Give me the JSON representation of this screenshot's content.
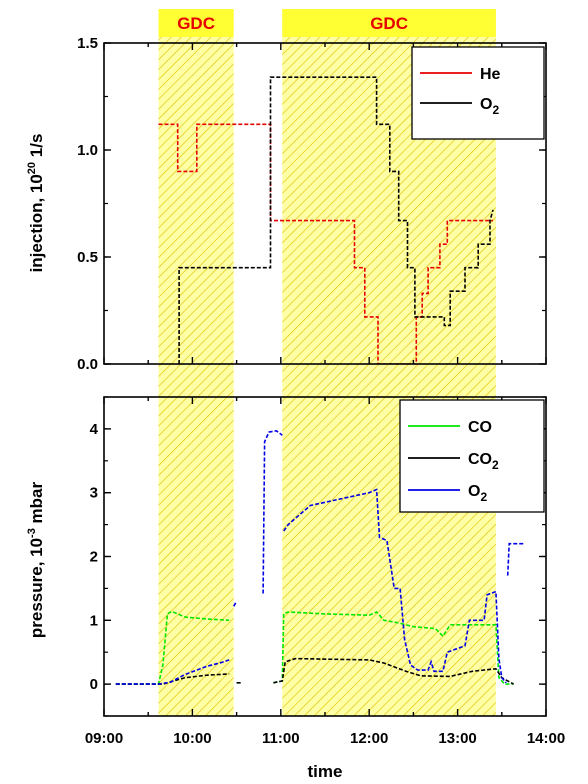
{
  "chart_data": [
    {
      "type": "line",
      "ylabel_main": "injection, 10",
      "ylabel_exp": "20",
      "ylabel_unit": " 1/s",
      "ylim": [
        0,
        1.5
      ],
      "yticks": [
        "0.0",
        "0.5",
        "1.0",
        "1.5"
      ],
      "xlim": [
        "09:00",
        "14:00"
      ],
      "grid": false,
      "legend_position": "top-right",
      "bands": [
        {
          "label": "GDC",
          "x0": "09:37",
          "x1": "10:28"
        },
        {
          "label": "GDC",
          "x0": "11:01",
          "x1": "13:26"
        }
      ],
      "series": [
        {
          "name": "He",
          "color": "#e60000",
          "points": [
            [
              "09:37",
              1.12
            ],
            [
              "09:50",
              1.12
            ],
            [
              "09:50",
              0.9
            ],
            [
              "10:03",
              0.9
            ],
            [
              "10:03",
              1.12
            ],
            [
              "10:28",
              1.12
            ],
            [
              "10:53",
              1.12
            ],
            [
              "10:53",
              0.67
            ],
            [
              "11:01",
              0.67
            ],
            [
              "11:50",
              0.67
            ],
            [
              "11:50",
              0.45
            ],
            [
              "11:57",
              0.45
            ],
            [
              "11:57",
              0.22
            ],
            [
              "12:06",
              0.22
            ],
            [
              "12:06",
              0.0
            ],
            [
              "12:32",
              0.0
            ],
            [
              "12:32",
              0.22
            ],
            [
              "12:36",
              0.22
            ],
            [
              "12:36",
              0.33
            ],
            [
              "12:40",
              0.33
            ],
            [
              "12:40",
              0.45
            ],
            [
              "12:48",
              0.45
            ],
            [
              "12:48",
              0.56
            ],
            [
              "12:53",
              0.56
            ],
            [
              "12:53",
              0.67
            ],
            [
              "13:24",
              0.67
            ]
          ]
        },
        {
          "name": "O",
          "name_sub": "2",
          "color": "#000000",
          "points": [
            [
              "09:51",
              0.0
            ],
            [
              "09:51",
              0.45
            ],
            [
              "10:28",
              0.45
            ],
            [
              "10:53",
              0.45
            ],
            [
              "10:53",
              1.34
            ],
            [
              "11:01",
              1.34
            ],
            [
              "12:05",
              1.34
            ],
            [
              "12:05",
              1.12
            ],
            [
              "12:14",
              1.12
            ],
            [
              "12:14",
              0.9
            ],
            [
              "12:20",
              0.9
            ],
            [
              "12:20",
              0.67
            ],
            [
              "12:26",
              0.67
            ],
            [
              "12:26",
              0.45
            ],
            [
              "12:31",
              0.45
            ],
            [
              "12:31",
              0.22
            ],
            [
              "12:51",
              0.22
            ],
            [
              "12:51",
              0.18
            ],
            [
              "12:55",
              0.18
            ],
            [
              "12:55",
              0.34
            ],
            [
              "13:05",
              0.34
            ],
            [
              "13:05",
              0.45
            ],
            [
              "13:14",
              0.45
            ],
            [
              "13:14",
              0.56
            ],
            [
              "13:22",
              0.56
            ],
            [
              "13:22",
              0.67
            ],
            [
              "13:24",
              0.72
            ]
          ]
        }
      ]
    },
    {
      "type": "line",
      "ylabel_main": "pressure, 10",
      "ylabel_exp": "-3",
      "ylabel_unit": " mbar",
      "ylim": [
        -0.5,
        4.5
      ],
      "yticks": [
        "0",
        "1",
        "2",
        "3",
        "4"
      ],
      "xlabel": "time",
      "xticks": [
        "09:00",
        "10:00",
        "11:00",
        "12:00",
        "13:00",
        "14:00"
      ],
      "grid": false,
      "legend_position": "top-right",
      "bands": [
        {
          "label": "GDC",
          "x0": "09:37",
          "x1": "10:28"
        },
        {
          "label": "GDC",
          "x0": "11:01",
          "x1": "13:26"
        }
      ],
      "series": [
        {
          "name": "CO",
          "color": "#00e600",
          "segments": [
            [
              [
                "09:08",
                0.0
              ],
              [
                "09:37",
                0.0
              ],
              [
                "09:40",
                0.3
              ],
              [
                "09:43",
                1.1
              ],
              [
                "09:46",
                1.14
              ],
              [
                "09:55",
                1.05
              ],
              [
                "10:10",
                1.02
              ],
              [
                "10:25",
                1.0
              ]
            ],
            [
              [
                "10:30",
                0.02
              ],
              [
                "10:33",
                0.02
              ]
            ],
            [
              [
                "10:55",
                0.02
              ],
              [
                "11:01",
                0.05
              ],
              [
                "11:02",
                1.1
              ],
              [
                "11:05",
                1.13
              ],
              [
                "11:30",
                1.1
              ],
              [
                "12:00",
                1.08
              ],
              [
                "12:05",
                1.13
              ],
              [
                "12:10",
                1.0
              ],
              [
                "12:20",
                0.96
              ],
              [
                "12:30",
                0.9
              ],
              [
                "12:45",
                0.87
              ],
              [
                "12:50",
                0.75
              ],
              [
                "12:55",
                0.93
              ],
              [
                "13:10",
                0.93
              ],
              [
                "13:26",
                0.93
              ],
              [
                "13:28",
                0.1
              ],
              [
                "13:32",
                0.0
              ],
              [
                "13:38",
                0.0
              ]
            ]
          ]
        },
        {
          "name": "CO",
          "name_sub": "2",
          "color": "#000000",
          "segments": [
            [
              [
                "09:08",
                0.0
              ],
              [
                "09:40",
                0.0
              ],
              [
                "09:55",
                0.1
              ],
              [
                "10:10",
                0.14
              ],
              [
                "10:25",
                0.16
              ]
            ],
            [
              [
                "10:30",
                0.02
              ],
              [
                "10:33",
                0.02
              ]
            ],
            [
              [
                "10:55",
                0.02
              ],
              [
                "11:01",
                0.05
              ],
              [
                "11:03",
                0.35
              ],
              [
                "11:10",
                0.4
              ],
              [
                "12:00",
                0.38
              ],
              [
                "12:10",
                0.33
              ],
              [
                "12:25",
                0.2
              ],
              [
                "12:35",
                0.13
              ],
              [
                "12:55",
                0.12
              ],
              [
                "13:10",
                0.2
              ],
              [
                "13:26",
                0.24
              ],
              [
                "13:30",
                0.1
              ],
              [
                "13:38",
                0.0
              ]
            ]
          ]
        },
        {
          "name": "O",
          "name_sub": "2",
          "color": "#0000e6",
          "segments": [
            [
              [
                "09:08",
                0.0
              ],
              [
                "09:37",
                0.0
              ],
              [
                "09:45",
                0.03
              ],
              [
                "09:55",
                0.15
              ],
              [
                "10:10",
                0.28
              ],
              [
                "10:20",
                0.34
              ],
              [
                "10:25",
                0.38
              ]
            ],
            [
              [
                "10:28",
                1.22
              ],
              [
                "10:30",
                1.3
              ]
            ],
            [
              [
                "10:48",
                1.42
              ],
              [
                "10:49",
                3.8
              ],
              [
                "10:52",
                3.95
              ],
              [
                "10:57",
                3.97
              ],
              [
                "11:01",
                3.9
              ]
            ],
            [
              [
                "11:02",
                2.4
              ],
              [
                "11:05",
                2.5
              ],
              [
                "11:20",
                2.8
              ],
              [
                "11:40",
                2.9
              ],
              [
                "12:00",
                3.0
              ],
              [
                "12:05",
                3.05
              ],
              [
                "12:07",
                2.3
              ],
              [
                "12:12",
                2.25
              ],
              [
                "12:15",
                1.8
              ],
              [
                "12:17",
                1.5
              ],
              [
                "12:21",
                1.5
              ],
              [
                "12:24",
                0.7
              ],
              [
                "12:28",
                0.3
              ],
              [
                "12:33",
                0.22
              ],
              [
                "12:40",
                0.22
              ],
              [
                "12:42",
                0.35
              ],
              [
                "12:44",
                0.2
              ],
              [
                "12:50",
                0.2
              ],
              [
                "12:53",
                0.5
              ],
              [
                "13:05",
                0.6
              ],
              [
                "13:08",
                1.0
              ],
              [
                "13:18",
                1.0
              ],
              [
                "13:20",
                1.4
              ],
              [
                "13:26",
                1.45
              ],
              [
                "13:28",
                0.4
              ],
              [
                "13:30",
                0.1
              ],
              [
                "13:33",
                0.02
              ]
            ],
            [
              [
                "13:34",
                1.7
              ],
              [
                "13:35",
                2.2
              ],
              [
                "13:45",
                2.2
              ]
            ]
          ]
        }
      ]
    }
  ]
}
